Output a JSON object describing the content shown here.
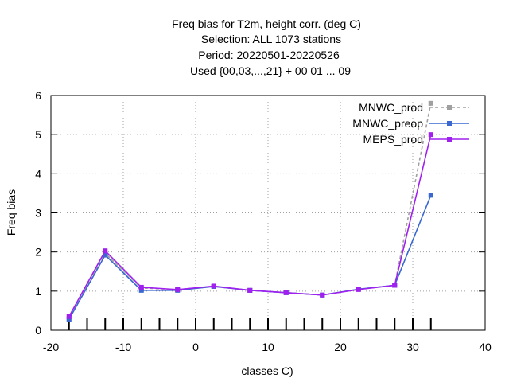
{
  "chart_data": {
    "type": "line",
    "title_lines": [
      "Freq bias  for T2m, height corr. (deg C)",
      "Selection: ALL    1073 stations",
      "Period: 20220501-20220526",
      "Used {00,03,...,21} + 00 01 ... 09"
    ],
    "xlabel": "classes C)",
    "ylabel": "Freq bias",
    "xlim": [
      -20,
      40
    ],
    "ylim": [
      0,
      6
    ],
    "xticks": [
      -20,
      -10,
      0,
      10,
      20,
      30,
      40
    ],
    "yticks": [
      0,
      1,
      2,
      3,
      4,
      5,
      6
    ],
    "grid": true,
    "legend_position": "top-right",
    "x": [
      -17.5,
      -12.5,
      -7.5,
      -2.5,
      2.5,
      7.5,
      12.5,
      17.5,
      22.5,
      27.5,
      32.5
    ],
    "series": [
      {
        "name": "MNWC_prod",
        "color": "#a0a0a0",
        "dashed": true,
        "values": [
          0.3,
          1.97,
          1.08,
          1.04,
          1.12,
          1.02,
          0.96,
          0.9,
          1.05,
          1.15,
          5.8
        ]
      },
      {
        "name": "MNWC_preop",
        "color": "#3a68d0",
        "dashed": false,
        "values": [
          0.28,
          1.92,
          1.02,
          1.02,
          1.12,
          1.02,
          0.96,
          0.9,
          1.05,
          1.15,
          3.45
        ]
      },
      {
        "name": "MEPS_prod",
        "color": "#a020f0",
        "dashed": false,
        "values": [
          0.35,
          2.03,
          1.1,
          1.04,
          1.13,
          1.02,
          0.96,
          0.9,
          1.04,
          1.15,
          5.0
        ]
      }
    ],
    "bottom_ticks_x": [
      -17.5,
      -15,
      -12.5,
      -10,
      -7.5,
      -5,
      -2.5,
      0,
      2.5,
      5,
      7.5,
      10,
      12.5,
      15,
      17.5,
      20,
      22.5,
      25,
      27.5,
      30,
      32.5
    ]
  }
}
